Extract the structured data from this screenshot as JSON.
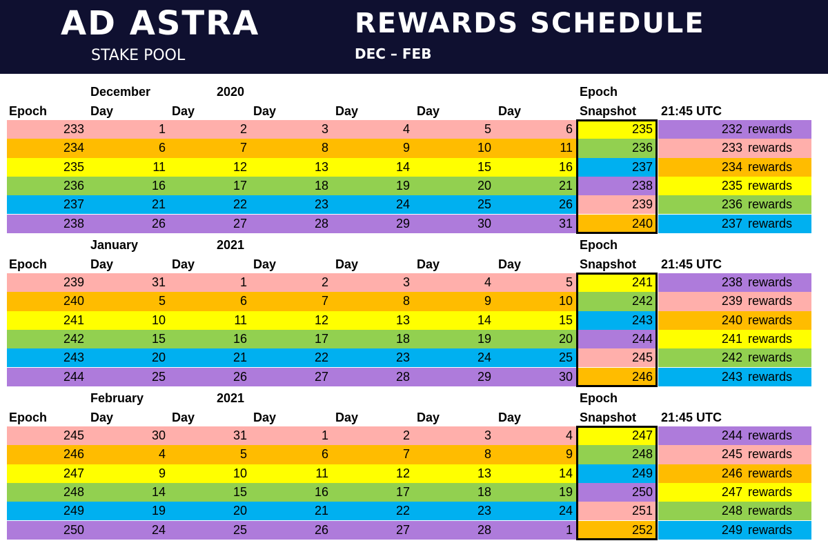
{
  "header": {
    "brand": "AD ASTRA",
    "brand_sub": "STAKE POOL",
    "title": "REWARDS SCHEDULE",
    "range": "DEC – FEB"
  },
  "labels": {
    "epoch": "Epoch",
    "day": "Day",
    "epoch_top": "Epoch",
    "snapshot": "Snapshot",
    "utc": "21:45 UTC",
    "rewards": "rewards"
  },
  "colors": {
    "pink": "#ffafab",
    "orange": "#ffbc00",
    "yellow": "#ffff00",
    "green": "#92d050",
    "blue": "#00b0f0",
    "purple": "#ae7bdb"
  },
  "row_colors": [
    "pink",
    "orange",
    "yellow",
    "green",
    "blue",
    "purple"
  ],
  "snapshot_colors": [
    "yellow",
    "green",
    "blue",
    "purple",
    "pink",
    "orange"
  ],
  "reward_colors": [
    "purple",
    "pink",
    "orange",
    "yellow",
    "green",
    "blue"
  ],
  "months": [
    {
      "month": "December",
      "year": "2020",
      "rows": [
        {
          "epoch": "233",
          "days": [
            "1",
            "2",
            "3",
            "4",
            "5",
            "6"
          ],
          "snapshot": "235",
          "reward": "232"
        },
        {
          "epoch": "234",
          "days": [
            "6",
            "7",
            "8",
            "9",
            "10",
            "11"
          ],
          "snapshot": "236",
          "reward": "233"
        },
        {
          "epoch": "235",
          "days": [
            "11",
            "12",
            "13",
            "14",
            "15",
            "16"
          ],
          "snapshot": "237",
          "reward": "234"
        },
        {
          "epoch": "236",
          "days": [
            "16",
            "17",
            "18",
            "19",
            "20",
            "21"
          ],
          "snapshot": "238",
          "reward": "235"
        },
        {
          "epoch": "237",
          "days": [
            "21",
            "22",
            "23",
            "24",
            "25",
            "26"
          ],
          "snapshot": "239",
          "reward": "236"
        },
        {
          "epoch": "238",
          "days": [
            "26",
            "27",
            "28",
            "29",
            "30",
            "31"
          ],
          "snapshot": "240",
          "reward": "237"
        }
      ]
    },
    {
      "month": "January",
      "year": "2021",
      "rows": [
        {
          "epoch": "239",
          "days": [
            "31",
            "1",
            "2",
            "3",
            "4",
            "5"
          ],
          "snapshot": "241",
          "reward": "238"
        },
        {
          "epoch": "240",
          "days": [
            "5",
            "6",
            "7",
            "8",
            "9",
            "10"
          ],
          "snapshot": "242",
          "reward": "239"
        },
        {
          "epoch": "241",
          "days": [
            "10",
            "11",
            "12",
            "13",
            "14",
            "15"
          ],
          "snapshot": "243",
          "reward": "240"
        },
        {
          "epoch": "242",
          "days": [
            "15",
            "16",
            "17",
            "18",
            "19",
            "20"
          ],
          "snapshot": "244",
          "reward": "241"
        },
        {
          "epoch": "243",
          "days": [
            "20",
            "21",
            "22",
            "23",
            "24",
            "25"
          ],
          "snapshot": "245",
          "reward": "242"
        },
        {
          "epoch": "244",
          "days": [
            "25",
            "26",
            "27",
            "28",
            "29",
            "30"
          ],
          "snapshot": "246",
          "reward": "243"
        }
      ]
    },
    {
      "month": "February",
      "year": "2021",
      "rows": [
        {
          "epoch": "245",
          "days": [
            "30",
            "31",
            "1",
            "2",
            "3",
            "4"
          ],
          "snapshot": "247",
          "reward": "244"
        },
        {
          "epoch": "246",
          "days": [
            "4",
            "5",
            "6",
            "7",
            "8",
            "9"
          ],
          "snapshot": "248",
          "reward": "245"
        },
        {
          "epoch": "247",
          "days": [
            "9",
            "10",
            "11",
            "12",
            "13",
            "14"
          ],
          "snapshot": "249",
          "reward": "246"
        },
        {
          "epoch": "248",
          "days": [
            "14",
            "15",
            "16",
            "17",
            "18",
            "19"
          ],
          "snapshot": "250",
          "reward": "247"
        },
        {
          "epoch": "249",
          "days": [
            "19",
            "20",
            "21",
            "22",
            "23",
            "24"
          ],
          "snapshot": "251",
          "reward": "248"
        },
        {
          "epoch": "250",
          "days": [
            "24",
            "25",
            "26",
            "27",
            "28",
            "1"
          ],
          "snapshot": "252",
          "reward": "249"
        }
      ]
    }
  ]
}
